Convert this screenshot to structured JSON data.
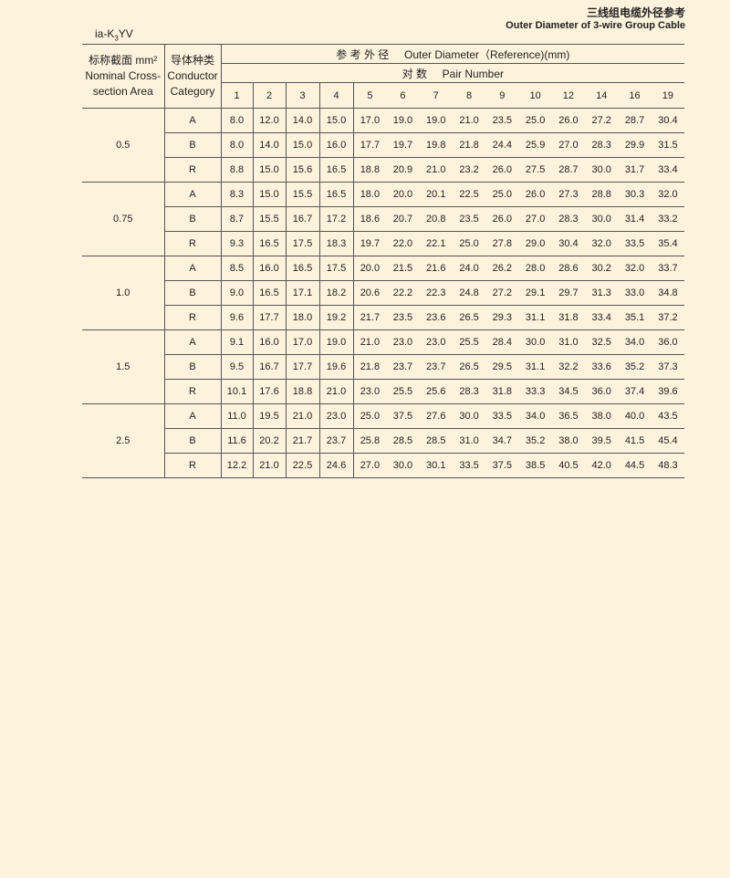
{
  "header": {
    "title_cn": "三线组电缆外径参考",
    "title_en": "Outer Diameter of 3-wire Group Cable",
    "model_prefix": "ia-K",
    "model_sub": "3",
    "model_suffix": "YV"
  },
  "table": {
    "col_area_cn": "标称截面 mm²",
    "col_area_en1": "Nominal Cross-",
    "col_area_en2": "section Area",
    "col_cat_cn": "导体种类",
    "col_cat_en1": "Conductor",
    "col_cat_en2": "Category",
    "od_cn": "参 考 外 径",
    "od_en": "Outer Diameter（Reference)(mm)",
    "pair_cn": "对 数",
    "pair_en": "Pair Number",
    "pairs": [
      "1",
      "2",
      "3",
      "4",
      "5",
      "6",
      "7",
      "8",
      "9",
      "10",
      "12",
      "14",
      "16",
      "19"
    ],
    "groups": [
      {
        "area": "0.5",
        "rows": [
          {
            "cat": "A",
            "values": [
              "8.0",
              "12.0",
              "14.0",
              "15.0",
              "17.0",
              "19.0",
              "19.0",
              "21.0",
              "23.5",
              "25.0",
              "26.0",
              "27.2",
              "28.7",
              "30.4"
            ]
          },
          {
            "cat": "B",
            "values": [
              "8.0",
              "14.0",
              "15.0",
              "16.0",
              "17.7",
              "19.7",
              "19.8",
              "21.8",
              "24.4",
              "25.9",
              "27.0",
              "28.3",
              "29.9",
              "31.5"
            ]
          },
          {
            "cat": "R",
            "values": [
              "8.8",
              "15.0",
              "15.6",
              "16.5",
              "18.8",
              "20.9",
              "21.0",
              "23.2",
              "26.0",
              "27.5",
              "28.7",
              "30.0",
              "31.7",
              "33.4"
            ]
          }
        ]
      },
      {
        "area": "0.75",
        "rows": [
          {
            "cat": "A",
            "values": [
              "8.3",
              "15.0",
              "15.5",
              "16.5",
              "18.0",
              "20.0",
              "20.1",
              "22.5",
              "25.0",
              "26.0",
              "27.3",
              "28.8",
              "30.3",
              "32.0"
            ]
          },
          {
            "cat": "B",
            "values": [
              "8.7",
              "15.5",
              "16.7",
              "17.2",
              "18.6",
              "20.7",
              "20.8",
              "23.5",
              "26.0",
              "27.0",
              "28.3",
              "30.0",
              "31.4",
              "33.2"
            ]
          },
          {
            "cat": "R",
            "values": [
              "9.3",
              "16.5",
              "17.5",
              "18.3",
              "19.7",
              "22.0",
              "22.1",
              "25.0",
              "27.8",
              "29.0",
              "30.4",
              "32.0",
              "33.5",
              "35.4"
            ]
          }
        ]
      },
      {
        "area": "1.0",
        "rows": [
          {
            "cat": "A",
            "values": [
              "8.5",
              "16.0",
              "16.5",
              "17.5",
              "20.0",
              "21.5",
              "21.6",
              "24.0",
              "26.2",
              "28.0",
              "28.6",
              "30.2",
              "32.0",
              "33.7"
            ]
          },
          {
            "cat": "B",
            "values": [
              "9.0",
              "16.5",
              "17.1",
              "18.2",
              "20.6",
              "22.2",
              "22.3",
              "24.8",
              "27.2",
              "29.1",
              "29.7",
              "31.3",
              "33.0",
              "34.8"
            ]
          },
          {
            "cat": "R",
            "values": [
              "9.6",
              "17.7",
              "18.0",
              "19.2",
              "21.7",
              "23.5",
              "23.6",
              "26.5",
              "29.3",
              "31.1",
              "31.8",
              "33.4",
              "35.1",
              "37.2"
            ]
          }
        ]
      },
      {
        "area": "1.5",
        "rows": [
          {
            "cat": "A",
            "values": [
              "9.1",
              "16.0",
              "17.0",
              "19.0",
              "21.0",
              "23.0",
              "23.0",
              "25.5",
              "28.4",
              "30.0",
              "31.0",
              "32.5",
              "34.0",
              "36.0"
            ]
          },
          {
            "cat": "B",
            "values": [
              "9.5",
              "16.7",
              "17.7",
              "19.6",
              "21.8",
              "23.7",
              "23.7",
              "26.5",
              "29.5",
              "31.1",
              "32.2",
              "33.6",
              "35.2",
              "37.3"
            ]
          },
          {
            "cat": "R",
            "values": [
              "10.1",
              "17.6",
              "18.8",
              "21.0",
              "23.0",
              "25.5",
              "25.6",
              "28.3",
              "31.8",
              "33.3",
              "34.5",
              "36.0",
              "37.4",
              "39.6"
            ]
          }
        ]
      },
      {
        "area": "2.5",
        "rows": [
          {
            "cat": "A",
            "values": [
              "11.0",
              "19.5",
              "21.0",
              "23.0",
              "25.0",
              "37.5",
              "27.6",
              "30.0",
              "33.5",
              "34.0",
              "36.5",
              "38.0",
              "40.0",
              "43.5"
            ]
          },
          {
            "cat": "B",
            "values": [
              "11.6",
              "20.2",
              "21.7",
              "23.7",
              "25.8",
              "28.5",
              "28.5",
              "31.0",
              "34.7",
              "35.2",
              "38.0",
              "39.5",
              "41.5",
              "45.4"
            ]
          },
          {
            "cat": "R",
            "values": [
              "12.2",
              "21.0",
              "22.5",
              "24.6",
              "27.0",
              "30.0",
              "30.1",
              "33.5",
              "37.5",
              "38.5",
              "40.5",
              "42.0",
              "44.5",
              "48.3"
            ]
          }
        ]
      }
    ]
  }
}
